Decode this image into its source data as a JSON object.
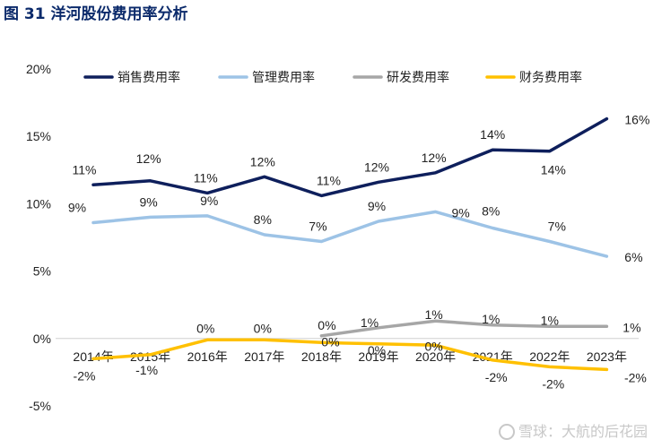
{
  "title": "图 31 洋河股份费用率分析",
  "watermark": "雪球：大航的后花园",
  "colors": {
    "title": "#0b2a6b",
    "销售费用率": "#0e1f5c",
    "管理费用率": "#9dc3e6",
    "研发费用率": "#a6a6a6",
    "财务费用率": "#ffc000"
  },
  "chart_data": {
    "type": "line",
    "title": "",
    "xlabel": "",
    "ylabel": "",
    "ylim": [
      -5,
      20
    ],
    "yticks": [
      "20%",
      "15%",
      "10%",
      "5%",
      "0%",
      "-5%"
    ],
    "legend_position": "top",
    "grid": false,
    "categories": [
      "2014年",
      "2015年",
      "2016年",
      "2017年",
      "2018年",
      "2019年",
      "2020年",
      "2021年",
      "2022年",
      "2023年"
    ],
    "series": [
      {
        "name": "销售费用率",
        "values": [
          11.4,
          11.7,
          10.8,
          12.0,
          10.6,
          11.6,
          12.3,
          14.0,
          13.9,
          16.3
        ],
        "labels": [
          "11%",
          "12%",
          "11%",
          "12%",
          "11%",
          "12%",
          "12%",
          "14%",
          "14%",
          "16%"
        ]
      },
      {
        "name": "管理费用率",
        "values": [
          8.6,
          9.0,
          9.1,
          7.7,
          7.2,
          8.7,
          9.4,
          8.2,
          7.2,
          6.1
        ],
        "labels": [
          "9%",
          "9%",
          "9%",
          "8%",
          "7%",
          "9%",
          "9%",
          "8%",
          "7%",
          "6%"
        ]
      },
      {
        "name": "研发费用率",
        "values": [
          null,
          null,
          null,
          null,
          0.2,
          0.8,
          1.3,
          1.0,
          0.9,
          0.9
        ],
        "labels": [
          null,
          null,
          null,
          null,
          "0%",
          "1%",
          "1%",
          "1%",
          "1%",
          "1%"
        ]
      },
      {
        "name": "财务费用率",
        "values": [
          -1.5,
          -1.2,
          -0.1,
          -0.1,
          -0.3,
          -0.4,
          -0.5,
          -1.6,
          -2.1,
          -2.3
        ],
        "labels": [
          "-2%",
          "-1%",
          "0%",
          "0%",
          "0%",
          "0%",
          "0%",
          "-2%",
          "-2%",
          "-2%"
        ]
      }
    ]
  }
}
